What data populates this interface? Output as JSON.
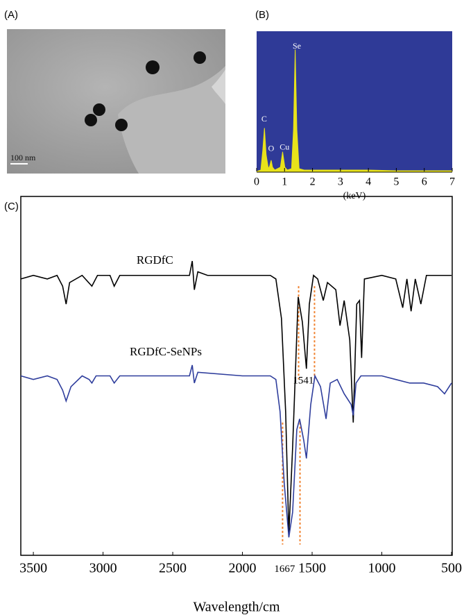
{
  "chart_data": [
    {
      "type": "image",
      "label": "(A)",
      "scale_bar": "100 nm"
    },
    {
      "type": "area",
      "label": "(B)",
      "xlabel": "(keV)",
      "color": "#e8e21a",
      "background": "#2f3a97",
      "xlim": [
        0,
        7
      ],
      "ylim": [
        0,
        100
      ],
      "xticks": [
        0,
        1,
        2,
        3,
        4,
        5,
        6,
        7
      ],
      "x": [
        0,
        0.15,
        0.22,
        0.28,
        0.34,
        0.42,
        0.47,
        0.52,
        0.57,
        0.65,
        0.85,
        0.93,
        1.01,
        1.1,
        1.25,
        1.32,
        1.38,
        1.44,
        1.52,
        1.7,
        2,
        3,
        4,
        5,
        6,
        7
      ],
      "values": [
        0,
        1,
        15,
        31,
        12,
        2,
        4,
        8,
        3,
        1,
        3,
        14,
        3,
        1,
        2,
        30,
        87,
        30,
        2,
        1,
        1,
        1,
        1,
        0.5,
        0.5,
        0.5
      ],
      "annotations": [
        {
          "text": "C",
          "x": 0.27,
          "y": 37
        },
        {
          "text": "O",
          "x": 0.52,
          "y": 16
        },
        {
          "text": "Cu",
          "x": 1.0,
          "y": 17
        },
        {
          "text": "Se",
          "x": 1.44,
          "y": 89
        }
      ]
    },
    {
      "type": "line",
      "label": "(C)",
      "xlabel": "Wavelength/cm",
      "xlim": [
        3590,
        495
      ],
      "ylim": [
        0,
        100
      ],
      "xticks": [
        3500,
        3000,
        2500,
        2000,
        1500,
        1000,
        500
      ],
      "series": [
        {
          "name": "RGDfC",
          "color": "#000000",
          "x": [
            3590,
            3500,
            3400,
            3330,
            3290,
            3265,
            3240,
            3150,
            3080,
            3040,
            2950,
            2920,
            2880,
            2700,
            2500,
            2380,
            2360,
            2345,
            2320,
            2250,
            2000,
            1800,
            1760,
            1720,
            1690,
            1667,
            1640,
            1600,
            1570,
            1541,
            1520,
            1490,
            1460,
            1420,
            1390,
            1330,
            1300,
            1270,
            1230,
            1205,
            1180,
            1160,
            1145,
            1125,
            1000,
            900,
            850,
            820,
            790,
            760,
            720,
            680,
            600,
            500
          ],
          "values": [
            77,
            78,
            77,
            78,
            75,
            70,
            76,
            78,
            75,
            78,
            78,
            75,
            78,
            78,
            78,
            78,
            82,
            74,
            79,
            78,
            78,
            78,
            77,
            66,
            40,
            6,
            30,
            72,
            65,
            52,
            70,
            78,
            77,
            71,
            76,
            74,
            64,
            71,
            60,
            37,
            70,
            71,
            55,
            77,
            78,
            77,
            69,
            77,
            68,
            77,
            70,
            78,
            78,
            78
          ]
        },
        {
          "name": "RGDfC-SeNPs",
          "color": "#2e3d9c",
          "x": [
            3590,
            3500,
            3400,
            3330,
            3290,
            3265,
            3230,
            3150,
            3100,
            3080,
            3050,
            2950,
            2920,
            2880,
            2700,
            2500,
            2380,
            2360,
            2345,
            2320,
            2000,
            1800,
            1760,
            1730,
            1700,
            1667,
            1640,
            1610,
            1590,
            1560,
            1541,
            1510,
            1480,
            1440,
            1400,
            1370,
            1320,
            1270,
            1220,
            1205,
            1185,
            1150,
            1000,
            900,
            800,
            700,
            600,
            550,
            500
          ],
          "values": [
            50,
            49,
            50,
            49,
            46,
            43,
            47,
            50,
            49,
            48,
            50,
            50,
            48,
            50,
            50,
            50,
            50,
            53,
            48,
            51,
            50,
            50,
            49,
            40,
            20,
            5,
            12,
            35,
            38,
            32,
            27,
            42,
            50,
            47,
            38,
            48,
            49,
            45,
            42,
            39,
            48,
            50,
            50,
            49,
            48,
            48,
            47,
            45,
            48
          ]
        }
      ],
      "annotations": [
        {
          "text": "RGDfC",
          "x": 2628,
          "y": 82
        },
        {
          "text": "RGDfC-SeNPs",
          "x": 2550,
          "y": 56.5
        },
        {
          "text": "1541",
          "x": 1563,
          "y": 48.5
        },
        {
          "text": "1667",
          "x": 1697,
          "y": -4
        }
      ],
      "guide_color": "#f07f2a",
      "guides": [
        {
          "x": 1597,
          "y1": 75,
          "y2": 49
        },
        {
          "x": 1483,
          "y1": 75,
          "y2": 49
        },
        {
          "x": 1712,
          "y1": 37,
          "y2": 3
        },
        {
          "x": 1587,
          "y1": 37,
          "y2": 3
        }
      ]
    }
  ]
}
